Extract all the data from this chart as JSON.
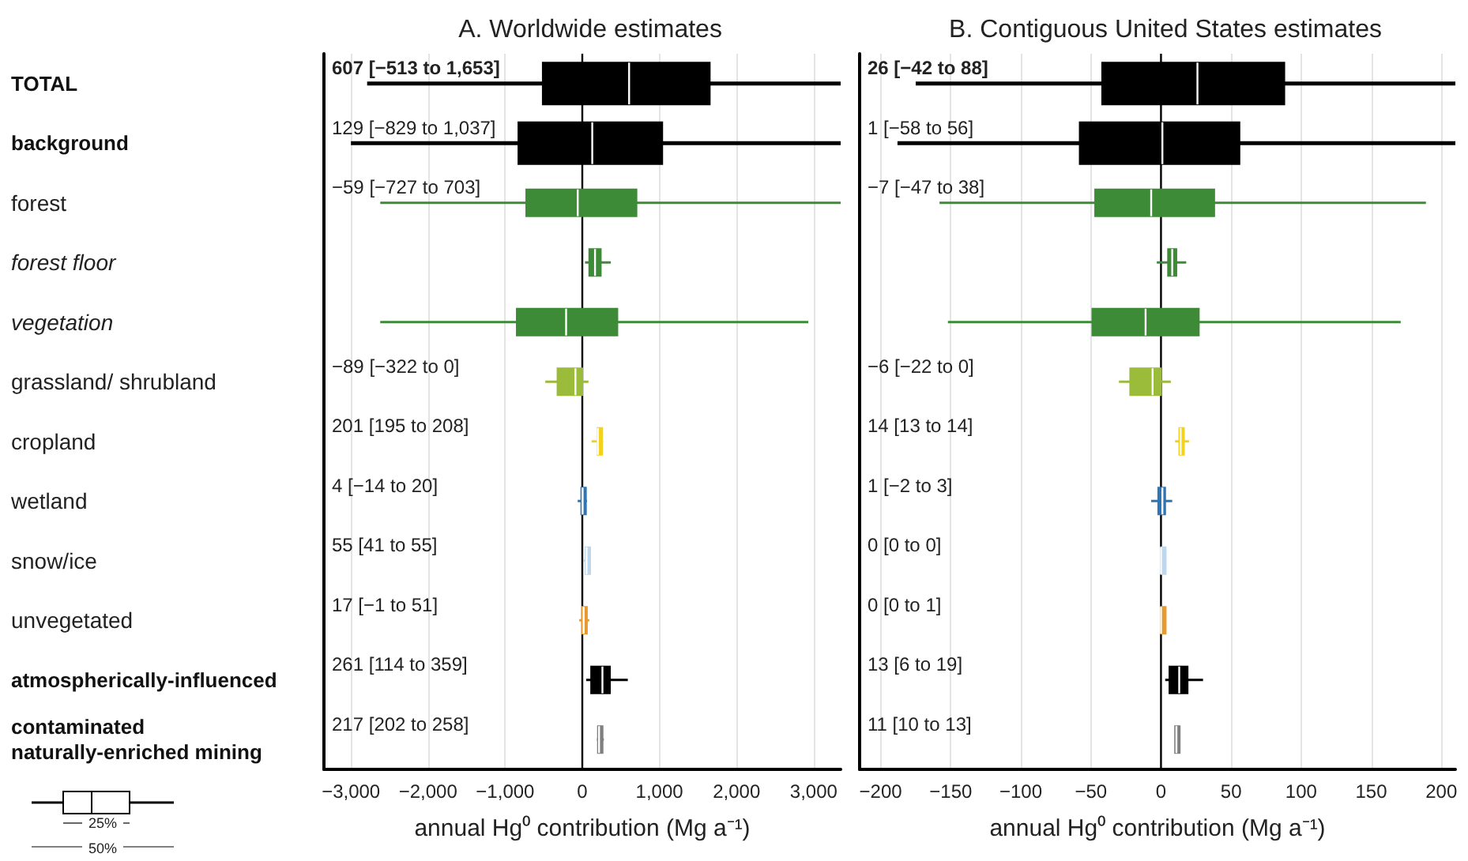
{
  "chart_data": [
    {
      "type": "box",
      "orientation": "horizontal",
      "title": "A. Worldwide estimates",
      "xlabel": "annual Hg⁰ contribution (Mg a⁻¹)",
      "categories": [
        "TOTAL",
        "background",
        "forest",
        "forest floor",
        "vegetation",
        "grassland/ shrubland",
        "cropland",
        "wetland",
        "snow/ice",
        "unvegetated",
        "atmospherically-influenced",
        "contaminated naturally-enriched mining"
      ],
      "boxes": [
        {
          "low": -2790,
          "q1": -513,
          "median": 607,
          "q3": 1653,
          "high": 3350
        },
        {
          "low": -3000,
          "q1": -829,
          "median": 129,
          "q3": 1037,
          "high": 3350
        },
        {
          "low": -2620,
          "q1": -727,
          "median": -59,
          "q3": 703,
          "high": 3350
        },
        {
          "low": 35,
          "q1": 90,
          "median": 165,
          "q3": 240,
          "high": 370
        },
        {
          "low": -2620,
          "q1": -850,
          "median": -210,
          "q3": 455,
          "high": 2930
        },
        {
          "low": -480,
          "q1": -322,
          "median": -89,
          "q3": 0,
          "high": 80
        },
        {
          "low": 120,
          "q1": 195,
          "median": 201,
          "q3": 208,
          "high": 270
        },
        {
          "low": -60,
          "q1": -14,
          "median": 4,
          "q3": 20,
          "high": 60
        },
        {
          "low": 20,
          "q1": 41,
          "median": 55,
          "q3": 55,
          "high": 80
        },
        {
          "low": -40,
          "q1": -1,
          "median": 17,
          "q3": 51,
          "high": 90
        },
        {
          "low": 50,
          "q1": 114,
          "median": 261,
          "q3": 359,
          "high": 590
        },
        {
          "low": 190,
          "q1": 202,
          "median": 217,
          "q3": 258,
          "high": 280
        }
      ],
      "colors": [
        "#000000",
        "#000000",
        "#3d8b37",
        "#3d8b37",
        "#3d8b37",
        "#9bbb3b",
        "#f2d21f",
        "#2e75b6",
        "#bdd7ee",
        "#e59b2f",
        "#000000",
        "#7f7f7f"
      ],
      "value_labels": [
        "607 [−513 to 1,653]",
        "129 [−829 to 1,037]",
        "−59 [−727 to 703]",
        null,
        null,
        "−89 [−322 to 0]",
        "201 [195 to 208]",
        "4 [−14 to 20]",
        "55 [41 to 55]",
        "17 [−1 to 51]",
        "261 [114 to 359]",
        "217 [202 to 258]"
      ],
      "xlim": [
        -3350,
        3350
      ],
      "xticks": [
        {
          "value": -3000,
          "label": "−3,000"
        },
        {
          "value": -2000,
          "label": "−2,000"
        },
        {
          "value": -1000,
          "label": "−1,000"
        },
        0,
        {
          "value": 1000,
          "label": "1,000"
        },
        {
          "value": 2000,
          "label": "2,000"
        },
        {
          "value": 3000,
          "label": "3,000"
        }
      ],
      "ref_lines": [
        {
          "axis": "x",
          "value": 0,
          "color": "#000000"
        }
      ],
      "grid": "x",
      "annotations": [
        "25%",
        "50%"
      ]
    },
    {
      "type": "box",
      "orientation": "horizontal",
      "title": "B. Contiguous United States estimates",
      "xlabel": "annual Hg⁰ contribution (Mg a⁻¹)",
      "tick_labels": "x",
      "categories": [
        "TOTAL",
        "background",
        "forest",
        "forest floor",
        "vegetation",
        "grassland/ shrubland",
        "cropland",
        "wetland",
        "snow/ice",
        "unvegetated",
        "atmospherically-influenced",
        "contaminated naturally-enriched mining"
      ],
      "boxes": [
        {
          "low": -175,
          "q1": -42,
          "median": 26,
          "q3": 88,
          "high": 210
        },
        {
          "low": -188,
          "q1": -58,
          "median": 1,
          "q3": 56,
          "high": 210
        },
        {
          "low": -158,
          "q1": -47,
          "median": -7,
          "q3": 38,
          "high": 189
        },
        {
          "low": -3,
          "q1": 5,
          "median": 8,
          "q3": 11,
          "high": 18
        },
        {
          "low": -152,
          "q1": -49,
          "median": -11,
          "q3": 27,
          "high": 171
        },
        {
          "low": -30,
          "q1": -22,
          "median": -6,
          "q3": 0,
          "high": 7
        },
        {
          "low": 10,
          "q1": 13,
          "median": 14,
          "q3": 14,
          "high": 20
        },
        {
          "low": -7,
          "q1": -2,
          "median": 1,
          "q3": 3,
          "high": 8
        },
        {
          "low": 0,
          "q1": 0,
          "median": 0,
          "q3": 0,
          "high": 0
        },
        {
          "low": 0,
          "q1": 0,
          "median": 0,
          "q3": 1,
          "high": 1
        },
        {
          "low": 3,
          "q1": 6,
          "median": 13,
          "q3": 19,
          "high": 30
        },
        {
          "low": 10,
          "q1": 10,
          "median": 11,
          "q3": 13,
          "high": 13
        }
      ],
      "colors": [
        "#000000",
        "#000000",
        "#3d8b37",
        "#3d8b37",
        "#3d8b37",
        "#9bbb3b",
        "#f2d21f",
        "#2e75b6",
        "#bdd7ee",
        "#e59b2f",
        "#000000",
        "#7f7f7f"
      ],
      "value_labels": [
        "26 [−42 to 88]",
        "1 [−58 to 56]",
        "−7 [−47 to 38]",
        null,
        null,
        "−6 [−22 to 0]",
        "14 [13 to 14]",
        "1 [−2 to 3]",
        "0 [0 to 0]",
        "0 [0 to 1]",
        "13 [6 to 19]",
        "11 [10 to 13]"
      ],
      "xlim": [
        -215,
        210
      ],
      "xticks": [
        {
          "value": -200,
          "label": "−200"
        },
        {
          "value": -150,
          "label": "−150"
        },
        {
          "value": -100,
          "label": "−100"
        },
        {
          "value": -50,
          "label": "−50"
        },
        0,
        50,
        100,
        150,
        200
      ],
      "ref_lines": [
        {
          "axis": "x",
          "value": 0,
          "color": "#000000"
        }
      ],
      "grid": "x"
    }
  ]
}
